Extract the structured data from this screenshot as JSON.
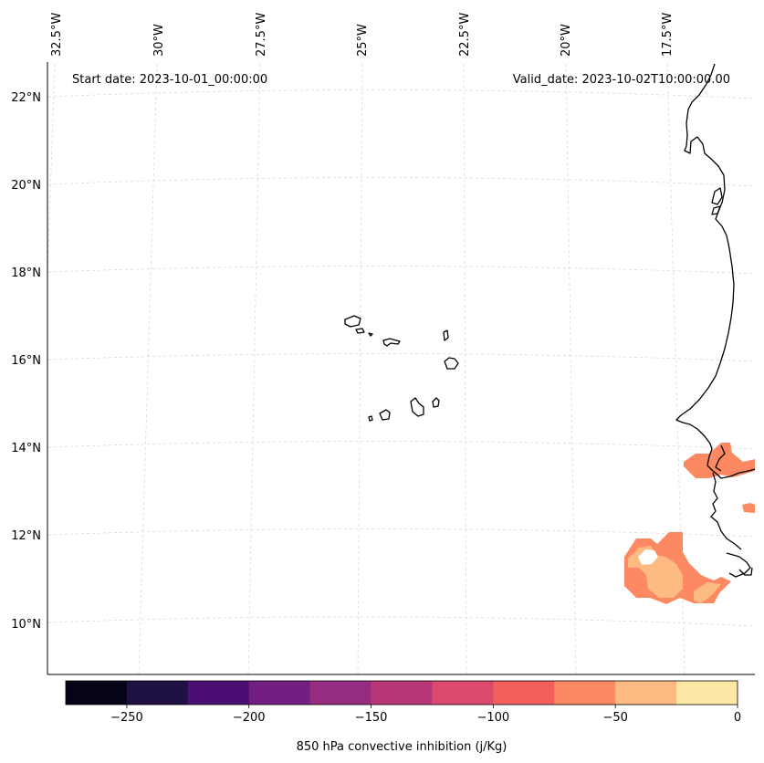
{
  "map": {
    "start_date_text": "Start date: 2023-10-01_00:00:00",
    "valid_date_text": "Valid_date: 2023-10-02T10:00:00.00",
    "lon_labels": [
      "32.5°W",
      "30°W",
      "27.5°W",
      "25°W",
      "22.5°W",
      "20°W",
      "17.5°W"
    ],
    "lat_labels": [
      "22°N",
      "20°N",
      "18°N",
      "16°N",
      "14°N",
      "12°N",
      "10°N"
    ],
    "field_colors": {
      "level_minus75_to_minus50": "#fc8961",
      "level_minus50_to_minus25": "#febb81",
      "level_minus100_to_minus75": "#f1605d"
    }
  },
  "colorbar": {
    "label": "850 hPa convective inhibition (j/Kg)",
    "ticks": [
      "−250",
      "−200",
      "−150",
      "−100",
      "−50",
      "0"
    ],
    "bounds": [
      -275,
      0
    ],
    "colors": [
      "#050416",
      "#1f1144",
      "#4b0f74",
      "#721f81",
      "#962c80",
      "#b73779",
      "#db4a6c",
      "#f1605d",
      "#fc8961",
      "#febb81",
      "#fde9a5"
    ]
  }
}
